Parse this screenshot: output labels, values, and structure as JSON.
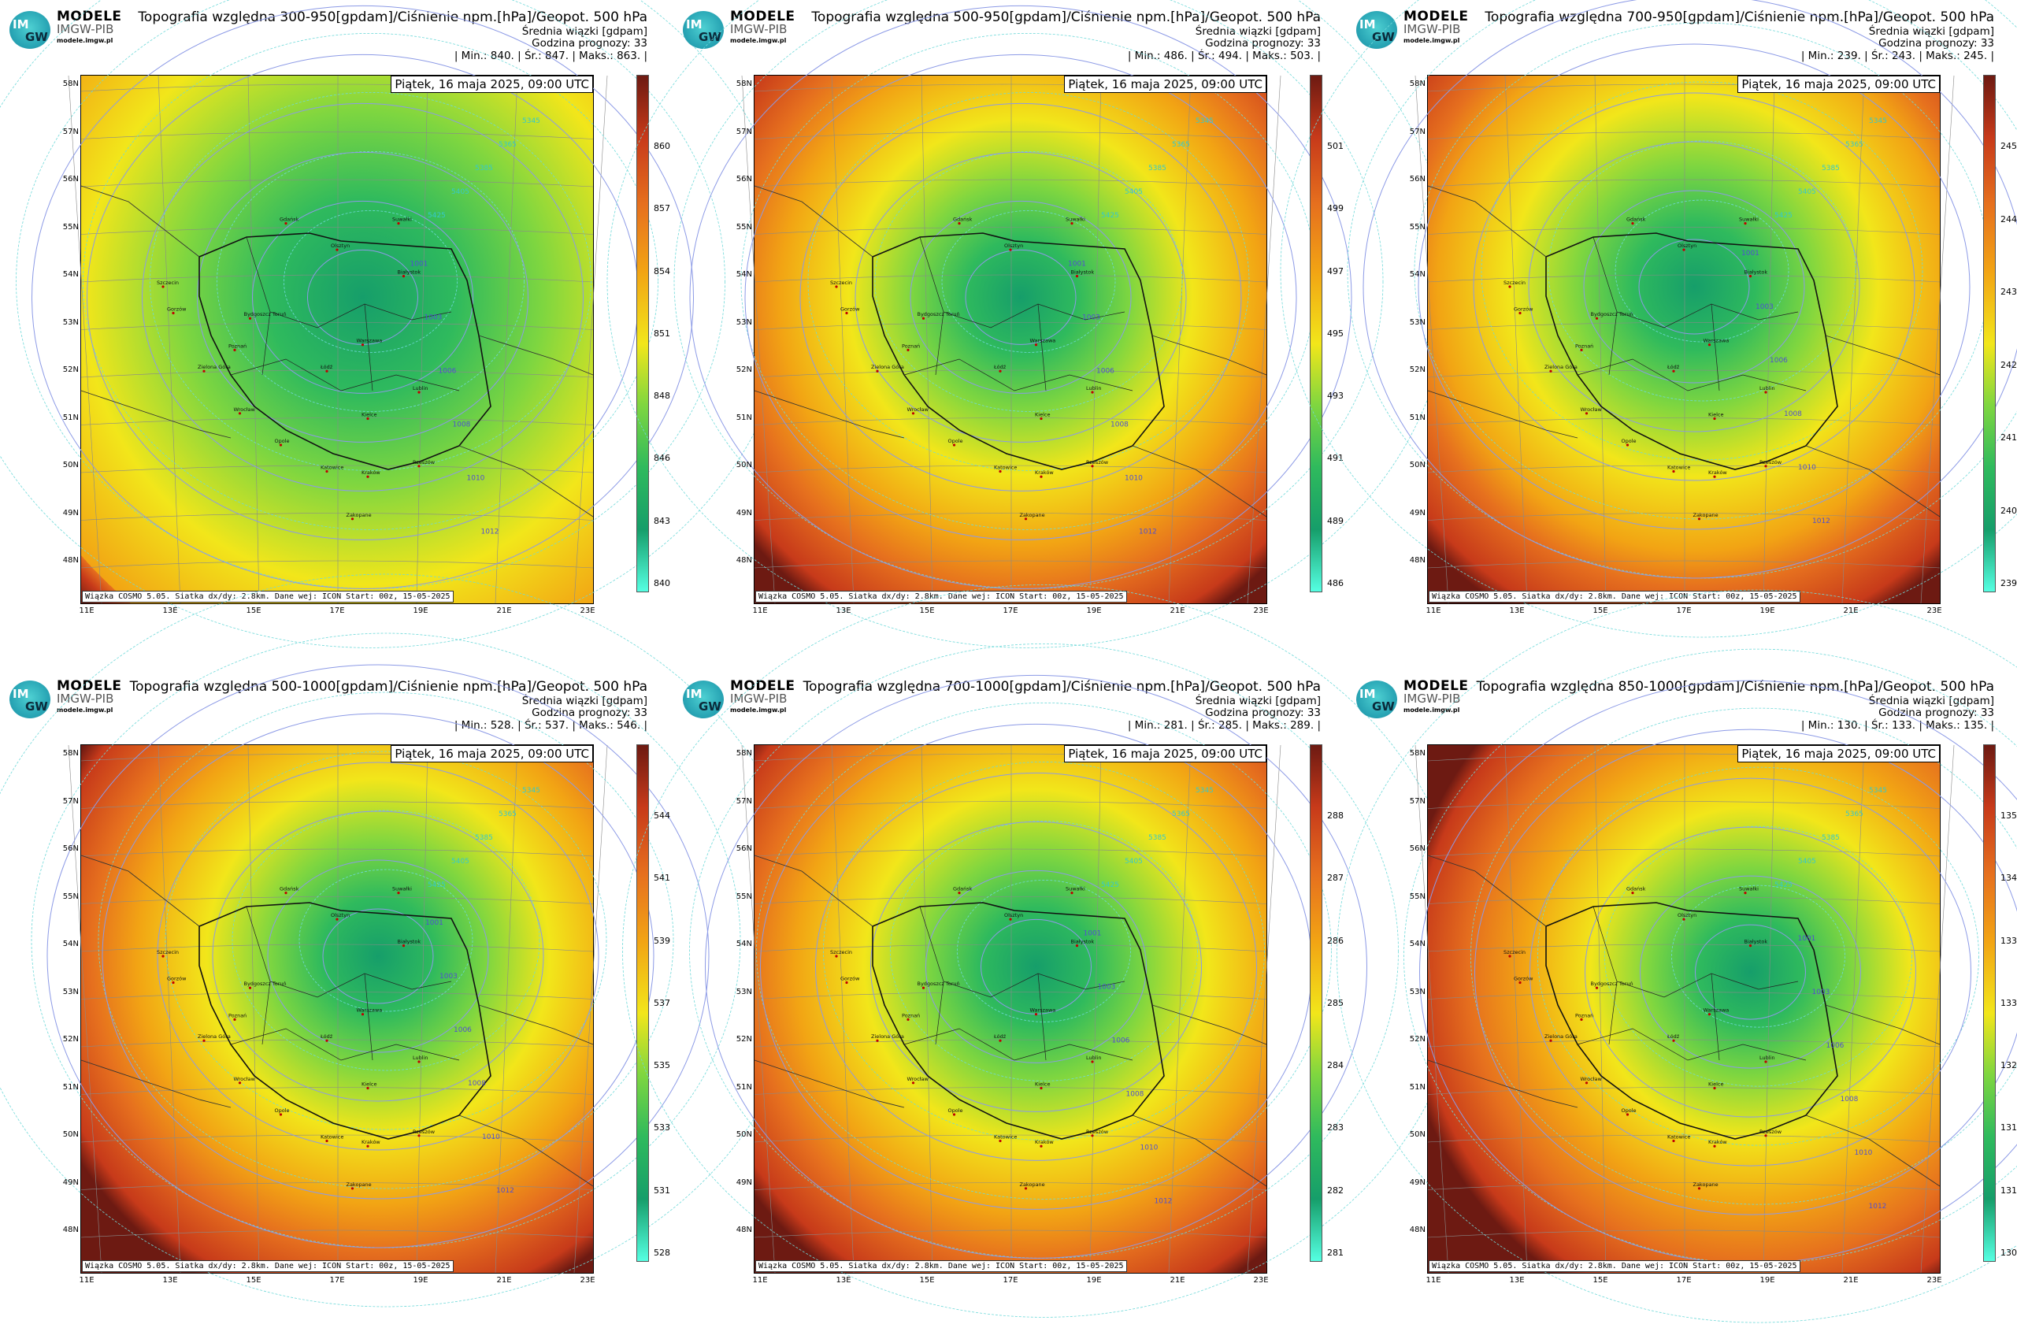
{
  "common": {
    "logo_top": "MODELE",
    "logo_bottom": "IMGW-PIB",
    "logo_site": "modele.imgw.pl",
    "logo_badge_top": "IM",
    "logo_badge_bottom": "GW",
    "subtitle": "Średnia wiązki [gdpam]",
    "forecast_hour": "Godzina prognozy: 33",
    "date": "Piątek, 16 maja 2025, 09:00 UTC",
    "footer": "Wiązka COSMO 5.05. Siatka dx/dy: 2.8km. Dane wej: ICON Start: 00z, 15-05-2025",
    "lat_labels": [
      "58N",
      "57N",
      "56N",
      "55N",
      "54N",
      "53N",
      "52N",
      "51N",
      "50N",
      "49N",
      "48N"
    ],
    "lon_labels": [
      "11E",
      "13E",
      "15E",
      "17E",
      "19E",
      "21E",
      "23E"
    ],
    "cities": [
      "Gdańsk",
      "Olsztyn",
      "Suwałki",
      "Białystok",
      "Szczecin",
      "Bydgoszcz Toruń",
      "Gorzów",
      "Poznań",
      "Zielona Góra",
      "Łódź",
      "Warszawa",
      "Lublin",
      "Wrocław",
      "Opole",
      "Kielce",
      "Katowice",
      "Kraków",
      "Rzeszów",
      "Zakopane"
    ],
    "isobars": [
      "1001",
      "1003",
      "1006",
      "1008",
      "1010",
      "1012"
    ],
    "geopot": [
      "5345",
      "5365",
      "5385",
      "5405",
      "5425"
    ]
  },
  "panels": [
    {
      "title": "Topografia względna 300-950[gpdam]/Ciśnienie npm.[hPa]/Geopot. 500 hPa",
      "min_label": "| Min.:",
      "min": "840.",
      "avg_label": "| Śr.:",
      "avg": "847.",
      "max_label": "| Maks.:",
      "max": "863. |",
      "ticks": [
        "860",
        "857",
        "854",
        "851",
        "848",
        "846",
        "843",
        "840"
      ],
      "green_extent": 1.0
    },
    {
      "title": "Topografia względna 500-950[gpdam]/Ciśnienie npm.[hPa]/Geopot. 500 hPa",
      "min_label": "| Min.:",
      "min": "486.",
      "avg_label": "| Śr.:",
      "avg": "494.",
      "max_label": "| Maks.:",
      "max": "503. |",
      "ticks": [
        "501",
        "499",
        "497",
        "495",
        "493",
        "491",
        "489",
        "486"
      ],
      "green_extent": 0.6
    },
    {
      "title": "Topografia względna 700-950[gpdam]/Ciśnienie npm.[hPa]/Geopot. 500 hPa",
      "min_label": "| Min.:",
      "min": "239.",
      "avg_label": "| Śr.:",
      "avg": "243.",
      "max_label": "| Maks.:",
      "max": "245. |",
      "ticks": [
        "245",
        "244",
        "243",
        "242",
        "241",
        "240",
        "239"
      ],
      "green_extent": 0.65
    },
    {
      "title": "Topografia względna 500-1000[gpdam]/Ciśnienie npm.[hPa]/Geopot. 500 hPa",
      "min_label": "| Min.:",
      "min": "528.",
      "avg_label": "| Śr.:",
      "avg": "537.",
      "max_label": "| Maks.:",
      "max": "546. |",
      "ticks": [
        "544",
        "541",
        "539",
        "537",
        "535",
        "533",
        "531",
        "528"
      ],
      "green_extent": 0.6
    },
    {
      "title": "Topografia względna 700-1000[gpdam]/Ciśnienie npm.[hPa]/Geopot. 500 hPa",
      "min_label": "| Min.:",
      "min": "281.",
      "avg_label": "| Śr.:",
      "avg": "285.",
      "max_label": "| Maks.:",
      "max": "289. |",
      "ticks": [
        "288",
        "287",
        "286",
        "285",
        "284",
        "283",
        "282",
        "281"
      ],
      "green_extent": 0.6
    },
    {
      "title": "Topografia względna 850-1000[gpdam]/Ciśnienie npm.[hPa]/Geopot. 500 hPa",
      "min_label": "| Min.:",
      "min": "130.",
      "avg_label": "| Śr.:",
      "avg": "133.",
      "max_label": "| Maks.:",
      "max": "135. |",
      "ticks": [
        "135",
        "134",
        "133",
        "133",
        "132",
        "131",
        "131",
        "130"
      ],
      "green_extent": 0.55
    }
  ],
  "colors": {
    "green_dark": "#169e6a",
    "green": "#2fba5d",
    "green_light": "#7ed640",
    "yellow": "#f2e61a",
    "orange": "#f2a414",
    "orange_dark": "#e6701e",
    "red": "#c73a1a",
    "brown": "#6d1a12",
    "cyan": "#55ffe2"
  }
}
